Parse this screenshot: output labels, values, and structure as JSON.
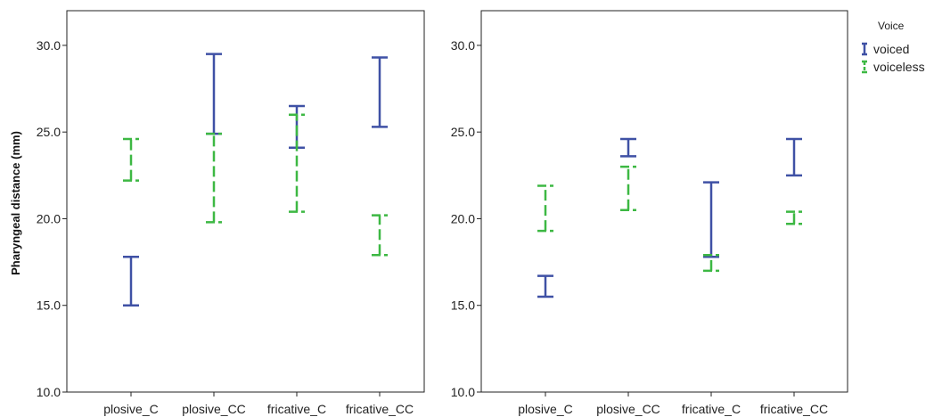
{
  "chart_data": [
    {
      "type": "errorbar",
      "ylabel": "Pharyngeal distance (mm)",
      "ylim": [
        10,
        32
      ],
      "yticks": [
        "10.0",
        "15.0",
        "20.0",
        "25.0",
        "30.0"
      ],
      "categories": [
        "plosive_C",
        "plosive_CC",
        "fricative_C",
        "fricative_CC"
      ],
      "series": [
        {
          "name": "voiced",
          "color": "#3f51a5",
          "style": "solid",
          "lower": [
            15.0,
            24.9,
            24.1,
            25.3
          ],
          "upper": [
            17.8,
            29.5,
            26.5,
            29.3
          ]
        },
        {
          "name": "voiceless",
          "color": "#3db843",
          "style": "dashed",
          "lower": [
            22.2,
            19.8,
            20.4,
            17.9
          ],
          "upper": [
            24.6,
            24.9,
            26.0,
            20.2
          ]
        }
      ]
    },
    {
      "type": "errorbar",
      "ylabel": "",
      "ylim": [
        10,
        32
      ],
      "yticks": [
        "10.0",
        "15.0",
        "20.0",
        "25.0",
        "30.0"
      ],
      "categories": [
        "plosive_C",
        "plosive_CC",
        "fricative_C",
        "fricative_CC"
      ],
      "series": [
        {
          "name": "voiced",
          "color": "#3f51a5",
          "style": "solid",
          "lower": [
            15.5,
            23.6,
            17.8,
            22.5
          ],
          "upper": [
            16.7,
            24.6,
            22.1,
            24.6
          ]
        },
        {
          "name": "voiceless",
          "color": "#3db843",
          "style": "dashed",
          "lower": [
            19.3,
            20.5,
            17.0,
            19.7
          ],
          "upper": [
            21.9,
            23.0,
            17.9,
            20.4
          ]
        }
      ]
    }
  ],
  "legend": {
    "title": "Voice",
    "position": "top-right",
    "items": [
      {
        "label": "voiced",
        "color": "#3f51a5",
        "style": "solid"
      },
      {
        "label": "voiceless",
        "color": "#3db843",
        "style": "dashed"
      }
    ]
  }
}
